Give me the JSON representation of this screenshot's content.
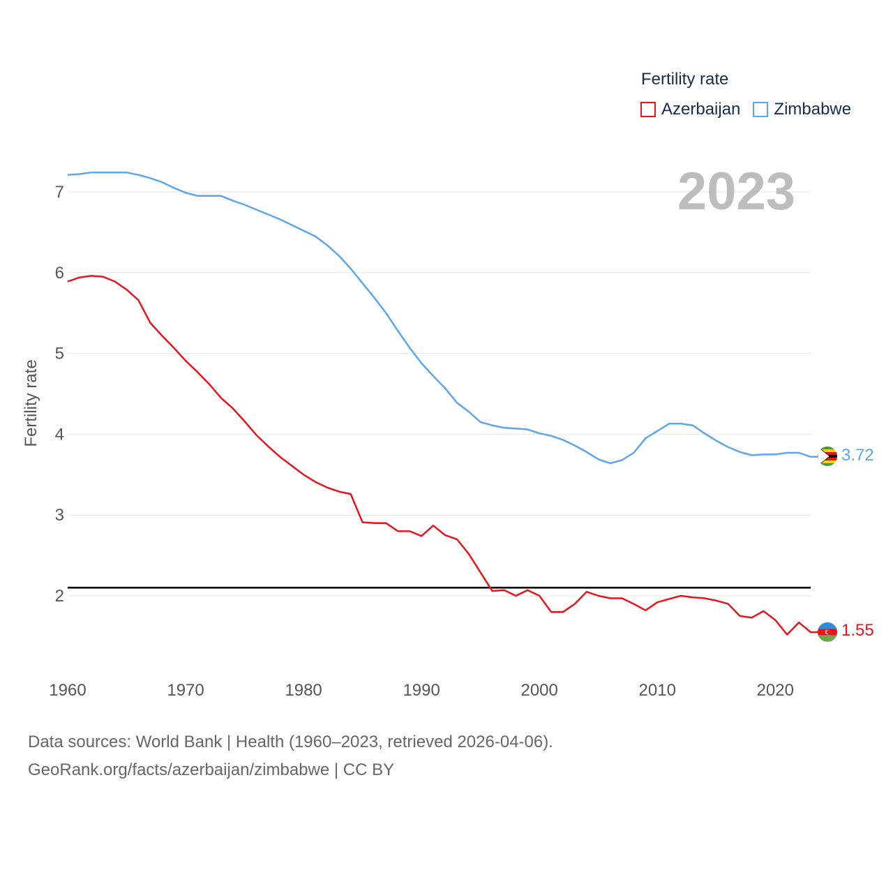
{
  "chart_data": {
    "type": "line",
    "title": "Fertility rate",
    "ylabel": "Fertility rate",
    "xlabel": "",
    "current_year_label": "2023",
    "xlim": [
      1960,
      2023
    ],
    "ylim": [
      1,
      7.5
    ],
    "x_ticks": [
      1960,
      1970,
      1980,
      1990,
      2000,
      2010,
      2020
    ],
    "y_ticks": [
      2,
      3,
      4,
      5,
      6,
      7
    ],
    "reference_line": {
      "value": 2.1
    },
    "x": [
      1960,
      1961,
      1962,
      1963,
      1964,
      1965,
      1966,
      1967,
      1968,
      1969,
      1970,
      1971,
      1972,
      1973,
      1974,
      1975,
      1976,
      1977,
      1978,
      1979,
      1980,
      1981,
      1982,
      1983,
      1984,
      1985,
      1986,
      1987,
      1988,
      1989,
      1990,
      1991,
      1992,
      1993,
      1994,
      1995,
      1996,
      1997,
      1998,
      1999,
      2000,
      2001,
      2002,
      2003,
      2004,
      2005,
      2006,
      2007,
      2008,
      2009,
      2010,
      2011,
      2012,
      2013,
      2014,
      2015,
      2016,
      2017,
      2018,
      2019,
      2020,
      2021,
      2022,
      2023
    ],
    "series": [
      {
        "name": "Azerbaijan",
        "color": "#e8141c",
        "end_label": "1.55",
        "flag": "azerbaijan-flag",
        "values": [
          5.89,
          5.94,
          5.96,
          5.95,
          5.89,
          5.79,
          5.66,
          5.38,
          5.22,
          5.07,
          4.91,
          4.77,
          4.62,
          4.45,
          4.32,
          4.16,
          3.99,
          3.85,
          3.72,
          3.61,
          3.5,
          3.41,
          3.34,
          3.29,
          3.26,
          2.91,
          2.9,
          2.9,
          2.8,
          2.8,
          2.74,
          2.87,
          2.75,
          2.7,
          2.52,
          2.29,
          2.06,
          2.07,
          2.0,
          2.07,
          2.0,
          1.8,
          1.8,
          1.9,
          2.05,
          2.0,
          1.97,
          1.97,
          1.9,
          1.82,
          1.92,
          1.96,
          2.0,
          1.98,
          1.97,
          1.94,
          1.9,
          1.75,
          1.73,
          1.81,
          1.7,
          1.52,
          1.67,
          1.55
        ]
      },
      {
        "name": "Zimbabwe",
        "color": "#5ba6ec",
        "end_label": "3.72",
        "flag": "zimbabwe-flag",
        "values": [
          7.21,
          7.22,
          7.24,
          7.24,
          7.24,
          7.24,
          7.21,
          7.17,
          7.12,
          7.05,
          6.99,
          6.95,
          6.95,
          6.95,
          6.89,
          6.84,
          6.78,
          6.72,
          6.66,
          6.59,
          6.52,
          6.45,
          6.34,
          6.21,
          6.05,
          5.87,
          5.69,
          5.5,
          5.28,
          5.07,
          4.88,
          4.72,
          4.57,
          4.39,
          4.28,
          4.15,
          4.11,
          4.08,
          4.07,
          4.06,
          4.01,
          3.98,
          3.93,
          3.86,
          3.78,
          3.69,
          3.64,
          3.68,
          3.77,
          3.95,
          4.04,
          4.13,
          4.13,
          4.11,
          4.01,
          3.92,
          3.84,
          3.78,
          3.74,
          3.75,
          3.75,
          3.77,
          3.77,
          3.72
        ]
      }
    ]
  },
  "footer": {
    "line1": "Data sources: World Bank | Health (1960–2023, retrieved 2026-04-06).",
    "line2": "GeoRank.org/facts/azerbaijan/zimbabwe | CC BY"
  }
}
